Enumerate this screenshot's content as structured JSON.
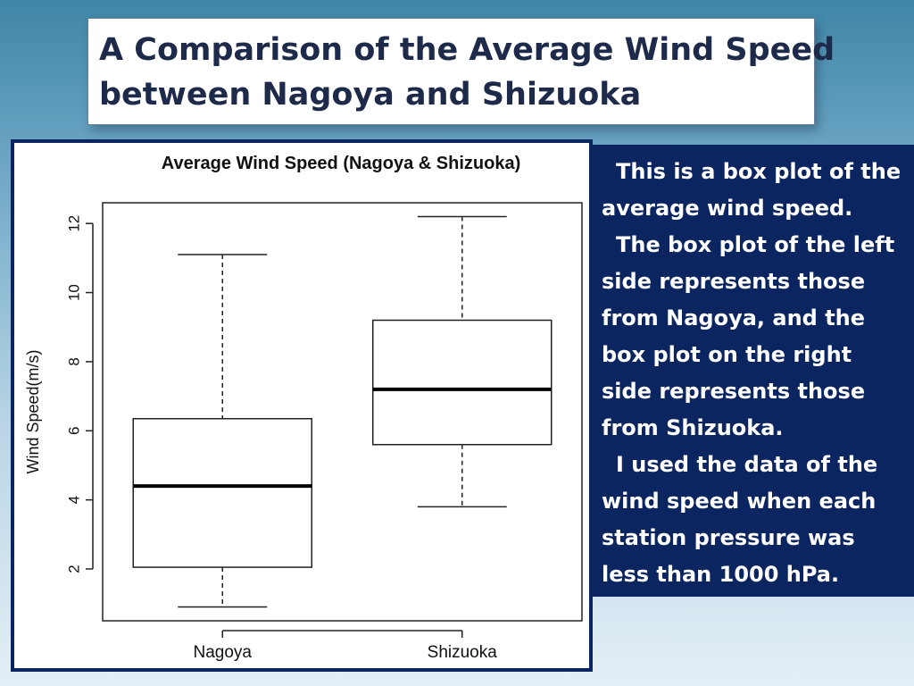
{
  "slide": {
    "title_line1": "A Comparison of the Average Wind Speed",
    "title_line2": "between Nagoya and Shizuoka",
    "description": [
      "This is a box plot of the average wind speed.",
      "The box plot of the left side represents those from Nagoya, and the box plot on the right side represents those from Shizuoka.",
      "I used the data of the wind speed when each station pressure was less than 1000 hPa."
    ]
  },
  "chart_data": {
    "type": "boxplot",
    "title": "Average Wind Speed (Nagoya & Shizuoka)",
    "xlabel": "",
    "ylabel": "Wind Speed(m/s)",
    "categories": [
      "Nagoya",
      "Shizuoka"
    ],
    "yticks": [
      2,
      4,
      6,
      8,
      10,
      12
    ],
    "ylim": [
      0.5,
      12.6
    ],
    "grid": false,
    "boxes": [
      {
        "category": "Nagoya",
        "min": 0.9,
        "q1": 2.05,
        "median": 4.4,
        "q3": 6.35,
        "max": 11.1
      },
      {
        "category": "Shizuoka",
        "min": 3.8,
        "q1": 5.6,
        "median": 7.2,
        "q3": 9.2,
        "max": 12.2
      }
    ]
  }
}
